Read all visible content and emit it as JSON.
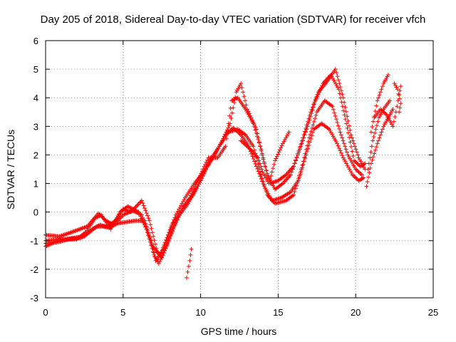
{
  "chart_data": {
    "type": "scatter",
    "title": "Day 205 of 2018, Sidereal Day-to-day VTEC variation (SDTVAR) for receiver vfch",
    "xlabel": "GPS time / hours",
    "ylabel": "SDTVAR / TECUs",
    "xlim": [
      0,
      25
    ],
    "ylim": [
      -3,
      6
    ],
    "xticks": [
      "0",
      "5",
      "10",
      "15",
      "20",
      "25"
    ],
    "yticks": [
      "-3",
      "-2",
      "-1",
      "0",
      "1",
      "2",
      "3",
      "4",
      "5",
      "6"
    ],
    "grid": true,
    "legend": "none",
    "marker": "+",
    "series": [
      {
        "name": "SDTVAR",
        "color": "#ff0000",
        "tracks": [
          [
            [
              0.0,
              -1.2
            ],
            [
              0.8,
              -1.0
            ],
            [
              1.8,
              -0.9
            ],
            [
              2.5,
              -0.85
            ],
            [
              3.3,
              -0.5
            ],
            [
              4.0,
              -0.5
            ],
            [
              4.5,
              -0.3
            ],
            [
              5.0,
              0.1
            ],
            [
              5.5,
              0.0
            ],
            [
              6.2,
              0.4
            ],
            [
              6.7,
              -0.3
            ],
            [
              7.2,
              -1.4
            ],
            [
              7.5,
              -1.6
            ],
            [
              8.0,
              -0.9
            ],
            [
              8.5,
              -0.2
            ],
            [
              9.2,
              0.3
            ],
            [
              9.8,
              0.9
            ],
            [
              10.4,
              1.6
            ],
            [
              11.0,
              2.1
            ],
            [
              11.6,
              2.7
            ],
            [
              12.1,
              2.95
            ],
            [
              12.6,
              2.7
            ],
            [
              13.1,
              2.3
            ],
            [
              13.6,
              1.6
            ],
            [
              14.1,
              0.9
            ],
            [
              14.6,
              0.4
            ],
            [
              15.2,
              0.5
            ],
            [
              15.8,
              0.7
            ],
            [
              16.3,
              1.1
            ],
            [
              16.8,
              2.0
            ],
            [
              17.3,
              2.9
            ],
            [
              17.8,
              3.1
            ],
            [
              18.3,
              2.9
            ],
            [
              18.8,
              2.4
            ],
            [
              19.2,
              1.9
            ],
            [
              19.8,
              1.3
            ],
            [
              20.2,
              1.1
            ],
            [
              20.5,
              1.2
            ]
          ],
          [
            [
              0.0,
              -1.0
            ],
            [
              1.0,
              -0.95
            ],
            [
              2.0,
              -0.95
            ],
            [
              2.6,
              -0.7
            ],
            [
              3.2,
              -0.2
            ],
            [
              3.6,
              -0.1
            ],
            [
              4.2,
              -0.6
            ],
            [
              4.8,
              0.0
            ],
            [
              5.3,
              0.2
            ],
            [
              6.0,
              0.0
            ],
            [
              6.5,
              -0.6
            ],
            [
              7.0,
              -1.5
            ],
            [
              7.3,
              -1.8
            ],
            [
              7.8,
              -1.2
            ],
            [
              8.3,
              -0.5
            ],
            [
              8.9,
              0.2
            ],
            [
              9.5,
              0.6
            ],
            [
              10.0,
              1.1
            ],
            [
              10.6,
              1.8
            ],
            [
              11.2,
              2.3
            ],
            [
              11.8,
              2.8
            ],
            [
              12.4,
              2.9
            ],
            [
              12.9,
              2.7
            ],
            [
              13.4,
              2.3
            ],
            [
              13.9,
              1.3
            ],
            [
              14.3,
              0.6
            ],
            [
              14.8,
              0.3
            ],
            [
              15.5,
              0.4
            ],
            [
              16.0,
              0.6
            ],
            [
              16.5,
              1.5
            ],
            [
              17.0,
              2.6
            ],
            [
              17.5,
              3.5
            ],
            [
              18.0,
              3.9
            ],
            [
              18.5,
              3.7
            ],
            [
              19.0,
              2.8
            ],
            [
              19.5,
              2.0
            ],
            [
              20.0,
              1.5
            ],
            [
              20.4,
              1.3
            ]
          ],
          [
            [
              0.0,
              -0.8
            ],
            [
              0.9,
              -0.85
            ],
            [
              1.7,
              -0.7
            ],
            [
              2.7,
              -0.5
            ],
            [
              3.4,
              -0.05
            ],
            [
              3.9,
              -0.3
            ],
            [
              4.4,
              -0.45
            ],
            [
              5.0,
              -0.1
            ],
            [
              5.6,
              0.05
            ],
            [
              6.2,
              -0.1
            ],
            [
              6.8,
              -1.0
            ],
            [
              7.1,
              -1.7
            ],
            [
              7.6,
              -1.3
            ],
            [
              8.2,
              -0.4
            ],
            [
              8.7,
              0.0
            ],
            [
              9.3,
              0.5
            ],
            [
              9.9,
              1.2
            ],
            [
              10.5,
              1.9
            ],
            [
              11.1,
              1.9
            ],
            [
              11.6,
              2.3
            ],
            [
              12.0,
              3.9
            ],
            [
              12.4,
              4.0
            ],
            [
              12.9,
              3.6
            ],
            [
              13.4,
              3.1
            ],
            [
              13.9,
              2.2
            ],
            [
              14.3,
              1.3
            ],
            [
              14.8,
              0.8
            ],
            [
              15.3,
              1.0
            ],
            [
              15.8,
              1.3
            ],
            [
              16.4,
              2.2
            ],
            [
              16.9,
              3.0
            ],
            [
              17.4,
              3.9
            ],
            [
              17.9,
              4.5
            ],
            [
              18.4,
              4.8
            ],
            [
              18.9,
              4.3
            ],
            [
              19.4,
              3.1
            ],
            [
              19.9,
              1.8
            ],
            [
              20.3,
              1.6
            ],
            [
              20.6,
              1.7
            ]
          ],
          [
            [
              0.0,
              -1.1
            ],
            [
              0.8,
              -1.05
            ],
            [
              1.5,
              -0.95
            ],
            [
              2.3,
              -0.9
            ],
            [
              3.0,
              -0.6
            ],
            [
              3.5,
              -0.45
            ],
            [
              4.1,
              -0.55
            ],
            [
              4.6,
              -0.4
            ],
            [
              5.2,
              -0.35
            ],
            [
              5.8,
              -0.3
            ],
            [
              6.4,
              -0.3
            ],
            [
              6.9,
              -1.2
            ],
            [
              7.4,
              -1.5
            ],
            [
              7.9,
              -0.8
            ],
            [
              8.4,
              -0.1
            ],
            [
              9.0,
              0.5
            ],
            [
              9.6,
              1.0
            ],
            [
              10.2,
              1.4
            ],
            [
              10.8,
              1.9
            ],
            [
              11.4,
              2.5
            ],
            [
              11.9,
              3.1
            ],
            [
              12.3,
              4.2
            ],
            [
              12.6,
              4.5
            ],
            [
              13.0,
              3.6
            ],
            [
              13.6,
              2.9
            ],
            [
              14.1,
              1.7
            ],
            [
              14.5,
              1.0
            ],
            [
              15.0,
              1.1
            ],
            [
              15.5,
              1.3
            ],
            [
              16.0,
              1.6
            ],
            [
              16.6,
              2.6
            ],
            [
              17.1,
              3.5
            ],
            [
              17.6,
              4.2
            ],
            [
              18.2,
              4.6
            ],
            [
              18.7,
              5.0
            ],
            [
              19.2,
              4.0
            ],
            [
              19.7,
              2.7
            ],
            [
              20.2,
              1.9
            ],
            [
              20.6,
              1.5
            ]
          ],
          [
            [
              12.6,
              2.5
            ],
            [
              13.2,
              2.2
            ],
            [
              13.7,
              1.9
            ],
            [
              14.0,
              1.4
            ],
            [
              14.4,
              1.0
            ],
            [
              14.8,
              1.8
            ],
            [
              15.3,
              2.4
            ],
            [
              15.7,
              2.8
            ]
          ],
          [
            [
              9.1,
              -2.3
            ],
            [
              9.3,
              -1.7
            ],
            [
              9.4,
              -1.3
            ]
          ],
          [
            [
              20.7,
              0.9
            ],
            [
              21.0,
              1.7
            ],
            [
              21.4,
              2.4
            ],
            [
              21.8,
              3.0
            ],
            [
              22.1,
              3.3
            ],
            [
              22.4,
              3.6
            ]
          ],
          [
            [
              20.8,
              1.5
            ],
            [
              21.1,
              2.5
            ],
            [
              21.5,
              3.3
            ],
            [
              21.8,
              3.6
            ],
            [
              22.2,
              3.9
            ]
          ],
          [
            [
              21.0,
              2.8
            ],
            [
              21.4,
              3.9
            ],
            [
              21.8,
              4.5
            ],
            [
              22.1,
              4.8
            ]
          ],
          [
            [
              21.2,
              3.3
            ],
            [
              21.6,
              3.6
            ],
            [
              22.0,
              3.4
            ],
            [
              22.4,
              3.0
            ],
            [
              22.6,
              3.5
            ],
            [
              22.8,
              4.1
            ],
            [
              22.9,
              4.4
            ]
          ],
          [
            [
              22.5,
              4.5
            ],
            [
              22.7,
              4.3
            ],
            [
              22.9,
              3.8
            ],
            [
              22.8,
              3.5
            ]
          ]
        ]
      }
    ]
  }
}
